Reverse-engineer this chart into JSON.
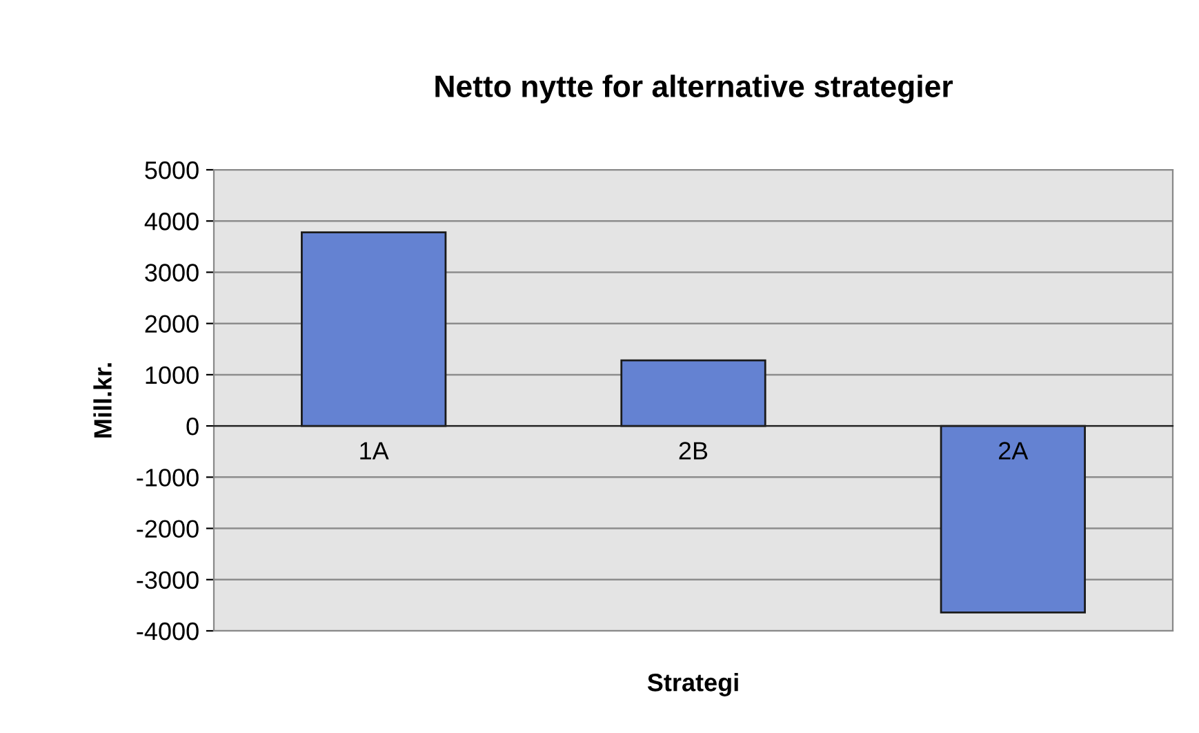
{
  "chart_data": {
    "type": "bar",
    "title": "Netto nytte for alternative strategier",
    "xlabel": "Strategi",
    "ylabel": "Mill.kr.",
    "categories": [
      "1A",
      "2B",
      "2A"
    ],
    "values": [
      3780,
      1280,
      -3640
    ],
    "color": "#6482d2",
    "ylim": [
      -4000,
      5000
    ],
    "yticks": [
      -4000,
      -3000,
      -2000,
      -1000,
      0,
      1000,
      2000,
      3000,
      4000,
      5000
    ],
    "grid": "y",
    "legend": false
  }
}
